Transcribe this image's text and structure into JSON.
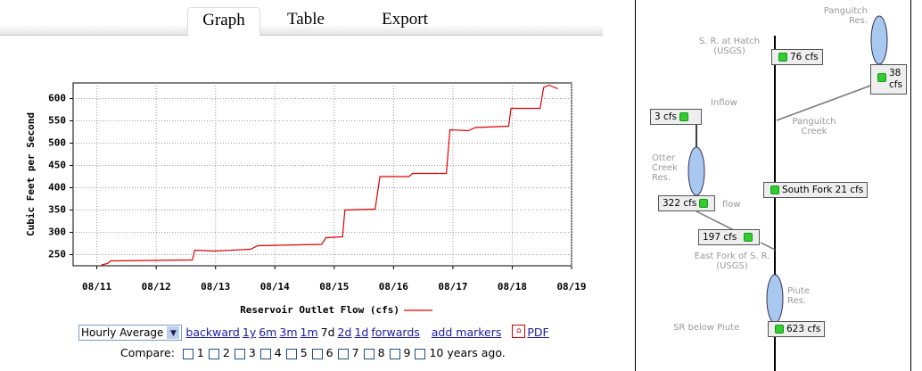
{
  "tabs": [
    "Graph",
    "Table",
    "Export"
  ],
  "chart_data": {
    "type": "line",
    "ylabel": "Cubic Feet per Second",
    "xlim": [
      10.6,
      19
    ],
    "ylim": [
      225,
      635
    ],
    "yticks": [
      250,
      300,
      350,
      400,
      450,
      500,
      550,
      600
    ],
    "xticks": [
      {
        "value": 11,
        "label": "08/11"
      },
      {
        "value": 12,
        "label": "08/12"
      },
      {
        "value": 13,
        "label": "08/13"
      },
      {
        "value": 14,
        "label": "08/14"
      },
      {
        "value": 15,
        "label": "08/15"
      },
      {
        "value": 16,
        "label": "08/16"
      },
      {
        "value": 17,
        "label": "08/17"
      },
      {
        "value": 18,
        "label": "08/18"
      },
      {
        "value": 19,
        "label": "08/19"
      }
    ],
    "grid": true,
    "series": [
      {
        "name": "Reservoir Outlet Flow (cfs)",
        "color": "#e00000",
        "x": [
          11.08,
          11.18,
          11.23,
          12.61,
          12.65,
          12.98,
          13.59,
          13.71,
          14.79,
          14.86,
          15.14,
          15.18,
          15.69,
          15.77,
          16.26,
          16.32,
          16.89,
          16.95,
          17.26,
          17.38,
          17.94,
          17.98,
          18.47,
          18.53,
          18.62,
          18.77
        ],
        "values": [
          227,
          230,
          236,
          238,
          260,
          258,
          262,
          270,
          273,
          288,
          290,
          350,
          352,
          425,
          425,
          432,
          432,
          530,
          528,
          535,
          538,
          578,
          578,
          625,
          630,
          622
        ]
      }
    ]
  },
  "controls": {
    "select": "Hourly Average",
    "links": [
      "backward",
      "1y",
      "6m",
      "3m",
      "1m"
    ],
    "current": "7d",
    "links2": [
      "2d",
      "1d",
      "forwards"
    ],
    "markers": "add markers",
    "pdf": "PDF",
    "compare": "Compare:",
    "options": [
      "1",
      "2",
      "3",
      "4",
      "5",
      "6",
      "7",
      "8",
      "9",
      "10 years ago."
    ]
  },
  "schematic": {
    "panguitch_res": [
      "Panguitch",
      "Res."
    ],
    "hatch": [
      "S. R. at Hatch",
      "(USGS)"
    ],
    "hatch_flow": "76 cfs",
    "panguitch_flow": [
      "38",
      "cfs"
    ],
    "inflow": "Inflow",
    "inflow_flow": "3 cfs",
    "panguitch_creek": [
      "Panguitch",
      "Creek"
    ],
    "otter": [
      "Otter",
      "Creek",
      "Res."
    ],
    "south_fork": "South Fork 21 cfs",
    "otter_flow": "322 cfs",
    "outflow": "flow",
    "east_fork_flow": "197 cfs",
    "east_fork": [
      "East Fork of S. R.",
      "(USGS)"
    ],
    "piute": [
      "Piute",
      "Res."
    ],
    "below_piute": "SR below Piute",
    "below_piute_flow": "623 cfs"
  }
}
